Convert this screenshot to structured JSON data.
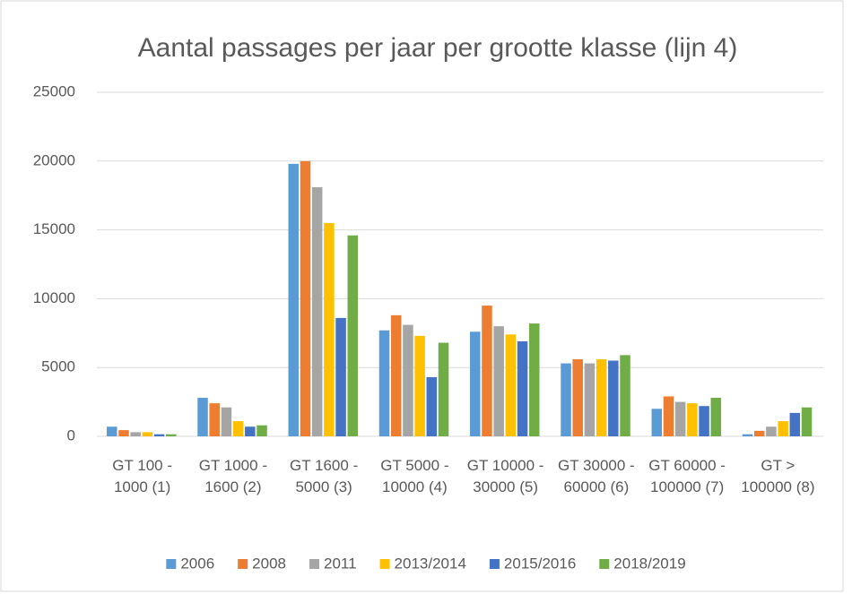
{
  "chart_data": {
    "type": "bar",
    "title": "Aantal passages per jaar per grootte klasse (lijn 4)",
    "categories": [
      "GT 100 - 1000 (1)",
      "GT 1000 - 1600 (2)",
      "GT 1600 - 5000 (3)",
      "GT 5000 - 10000 (4)",
      "GT 10000 - 30000 (5)",
      "GT 30000 - 60000 (6)",
      "GT 60000 - 100000 (7)",
      "GT > 100000 (8)"
    ],
    "series": [
      {
        "name": "2006",
        "color": "#5b9bd5",
        "values": [
          700,
          2800,
          19800,
          7700,
          7600,
          5300,
          2000,
          150
        ]
      },
      {
        "name": "2008",
        "color": "#ed7d31",
        "values": [
          450,
          2400,
          20000,
          8800,
          9500,
          5600,
          2900,
          400
        ]
      },
      {
        "name": "2011",
        "color": "#a5a5a5",
        "values": [
          300,
          2100,
          18100,
          8100,
          8000,
          5300,
          2500,
          700
        ]
      },
      {
        "name": "2013/2014",
        "color": "#ffc000",
        "values": [
          300,
          1100,
          15500,
          7300,
          7400,
          5600,
          2400,
          1100
        ]
      },
      {
        "name": "2015/2016",
        "color": "#4472c4",
        "values": [
          150,
          700,
          8600,
          4300,
          6900,
          5500,
          2200,
          1700
        ]
      },
      {
        "name": "2018/2019",
        "color": "#70ad47",
        "values": [
          150,
          800,
          14600,
          6800,
          8200,
          5900,
          2800,
          2100
        ]
      }
    ],
    "ylim": [
      0,
      25000
    ],
    "yticks": [
      0,
      5000,
      10000,
      15000,
      20000,
      25000
    ],
    "grid": true,
    "legend": "bottom"
  }
}
